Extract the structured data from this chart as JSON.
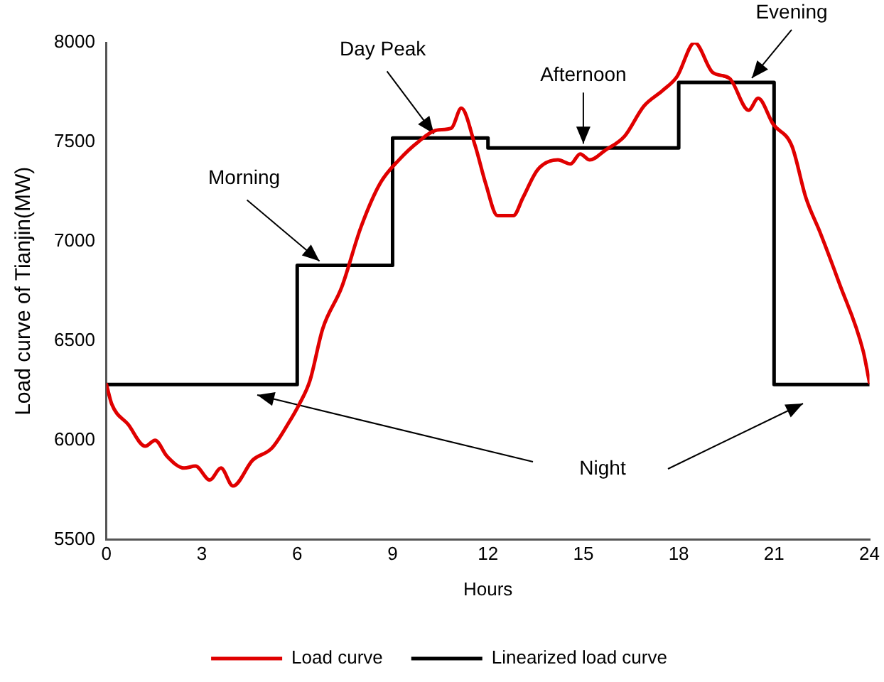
{
  "chart_data": {
    "type": "line",
    "xlabel": "Hours",
    "ylabel": "Load curve of Tianjin(MW)",
    "xlim": [
      0,
      24
    ],
    "xticks": [
      0,
      3,
      6,
      9,
      12,
      15,
      18,
      21,
      24
    ],
    "ylim": [
      5500,
      8000
    ],
    "yticks": [
      5500,
      6000,
      6500,
      7000,
      7500,
      8000
    ],
    "grid": false,
    "legend": "bottom",
    "series": [
      {
        "name": "Load curve",
        "type": "line",
        "color": "#e00000",
        "x": [
          0,
          0.17,
          0.68,
          1.22,
          1.53,
          1.9,
          2.44,
          2.8,
          3.25,
          3.6,
          3.98,
          4.6,
          5.2,
          5.74,
          6.06,
          6.4,
          6.8,
          7.4,
          8.0,
          8.6,
          9.2,
          9.8,
          10.4,
          10.85,
          11.16,
          11.6,
          11.93,
          12.3,
          12.8,
          13.1,
          13.56,
          14.2,
          14.6,
          14.9,
          15.2,
          15.7,
          16.3,
          16.9,
          17.5,
          17.95,
          18.5,
          19.07,
          19.6,
          20.2,
          20.5,
          20.97,
          21.56,
          22.0,
          22.46,
          23.05,
          23.8,
          24
        ],
        "values": [
          6280,
          6180,
          6080,
          5970,
          6000,
          5920,
          5860,
          5870,
          5800,
          5860,
          5770,
          5900,
          5960,
          6090,
          6180,
          6300,
          6560,
          6770,
          7070,
          7290,
          7410,
          7500,
          7560,
          7570,
          7670,
          7480,
          7290,
          7130,
          7130,
          7220,
          7360,
          7410,
          7390,
          7440,
          7410,
          7460,
          7530,
          7680,
          7760,
          7830,
          8000,
          7850,
          7820,
          7660,
          7720,
          7590,
          7480,
          7220,
          7040,
          6790,
          6450,
          6290
        ]
      },
      {
        "name": "Linearized load curve",
        "type": "step",
        "color": "#000000",
        "x": [
          0,
          6,
          9,
          12,
          18,
          21,
          24
        ],
        "values": [
          6280,
          6880,
          7520,
          7470,
          7800,
          6280,
          6280
        ]
      }
    ],
    "annotations": [
      {
        "text": "Morning",
        "x": 6.7,
        "y": 6880
      },
      {
        "text": "Day Peak",
        "x": 10.3,
        "y": 7520
      },
      {
        "text": "Afternoon",
        "x": 15,
        "y": 7470
      },
      {
        "text": "Evening",
        "x": 20.3,
        "y": 7800
      },
      "Night"
    ]
  }
}
